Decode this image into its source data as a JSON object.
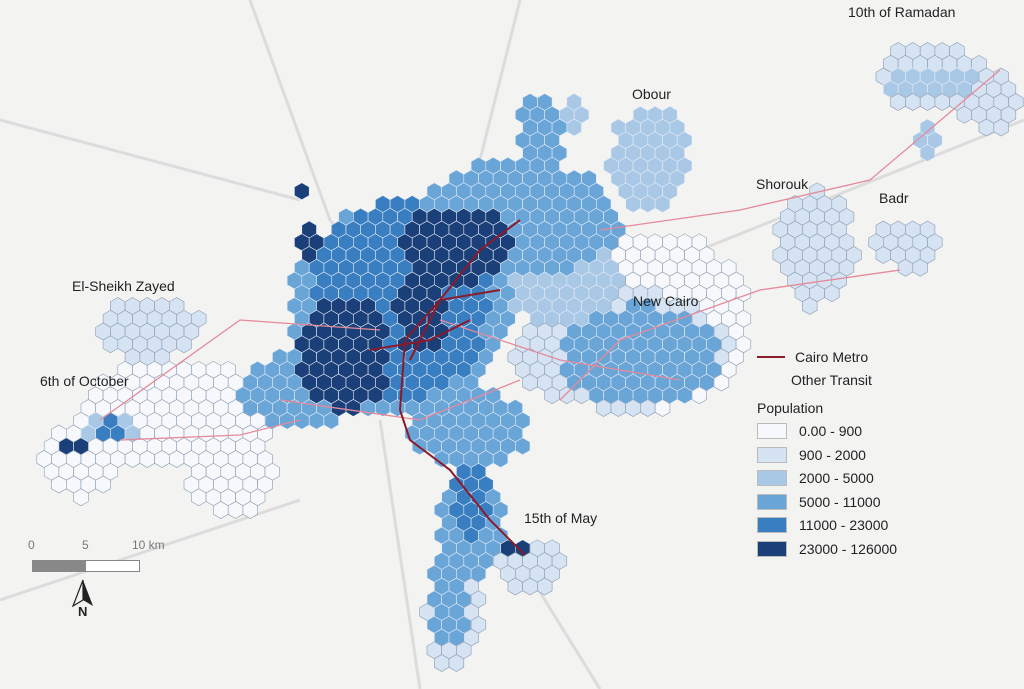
{
  "places": {
    "ramadan": "10th of Ramadan",
    "obour": "Obour",
    "shorouk": "Shorouk",
    "badr": "Badr",
    "zayed": "El-Sheikh Zayed",
    "october": "6th of October",
    "new_cairo": "New Cairo",
    "may15": "15th of May"
  },
  "legend": {
    "metro": "Cairo Metro",
    "transit": "Other Transit",
    "population_title": "Population",
    "metro_color": "#8b1a2b",
    "transit_color": "#e58a9a",
    "classes": [
      {
        "label": "0.00 - 900",
        "color": "#f6f8fb"
      },
      {
        "label": "900 - 2000",
        "color": "#d5e3f2"
      },
      {
        "label": "2000 - 5000",
        "color": "#a8c8e6"
      },
      {
        "label": "5000 - 11000",
        "color": "#6aa5d8"
      },
      {
        "label": "11000 - 23000",
        "color": "#3a7ec2"
      },
      {
        "label": "23000 - 126000",
        "color": "#1b3f78"
      }
    ]
  },
  "scale": {
    "t0": "0",
    "t5": "5",
    "t10": "10 km"
  },
  "north": "N"
}
